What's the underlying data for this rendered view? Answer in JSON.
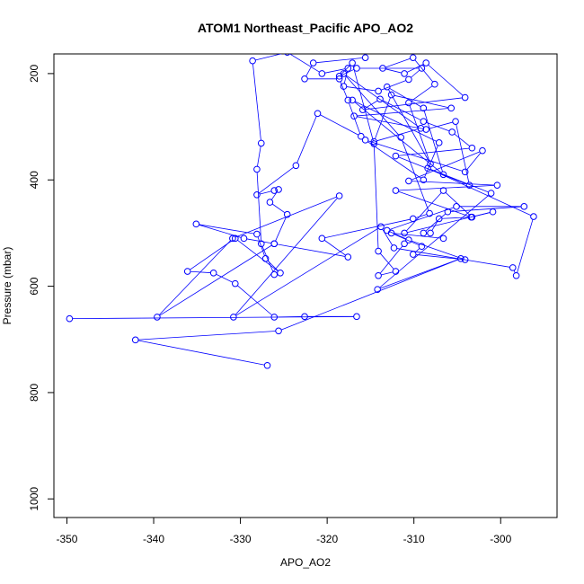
{
  "chart_data": {
    "type": "line",
    "title": "ATOM1 Northeast_Pacific APO_AO2",
    "xlabel": "APO_AO2",
    "ylabel": "Pressure (mbar)",
    "xlim": [
      -351.5,
      -293.5
    ],
    "ylim": [
      1035,
      163
    ],
    "y_reversed": true,
    "grid": false,
    "legend": "none",
    "color": "#0000ff",
    "x_ticks": [
      -350,
      -340,
      -330,
      -320,
      -310,
      -300
    ],
    "x_tick_labels": [
      "-350",
      "-340",
      "-330",
      "-320",
      "-310",
      "-300"
    ],
    "y_ticks": [
      200,
      400,
      600,
      800,
      1000
    ],
    "y_tick_labels": [
      "200",
      "400",
      "600",
      "800",
      "1000"
    ],
    "series": [
      {
        "x": [
          -326.9,
          -342.1,
          -325.6,
          -304.6,
          -314.2,
          -301.1,
          -308.4,
          -296.2,
          -298.2,
          -298.6,
          -312.3,
          -313.8,
          -330.8,
          -318.6,
          -330.9,
          -339.6,
          -326.1,
          -317.6,
          -320.6,
          -310.1,
          -308.2,
          -311.5,
          -318.1,
          -309.2,
          -314.6,
          -312.6,
          -305.7,
          -316.9,
          -308.6,
          -305.2,
          -303.6,
          -312.1,
          -303.3,
          -305.6,
          -308.9,
          -313.9,
          -315.9,
          -304.1,
          -308.6,
          -311.1,
          -313.6,
          -310.1,
          -307.6,
          -310.6,
          -308.1,
          -313.1,
          -308.9,
          -306.6,
          -317.1,
          -307.1,
          -308.9,
          -315.6,
          -304.1,
          -302.1,
          -310.6,
          -300.4,
          -312.1,
          -303.4,
          -300.9,
          -311.1,
          -306.6,
          -303.3,
          -307.1,
          -308.1,
          -308.9,
          -306.1,
          -297.3,
          -305.1,
          -313.1,
          -310.6,
          -304.1,
          -310.1,
          -309.1,
          -312.6,
          -306.6
        ],
        "y": [
          749,
          701,
          684,
          548,
          606,
          425,
          378,
          469,
          580,
          565,
          528,
          488,
          658,
          430,
          510,
          658,
          520,
          545,
          510,
          473,
          463,
          320,
          200,
          303,
          328,
          240,
          265,
          280,
          305,
          290,
          410,
          355,
          340,
          310,
          290,
          248,
          268,
          245,
          180,
          200,
          190,
          170,
          220,
          255,
          370,
          225,
          265,
          390,
          250,
          330,
          400,
          325,
          385,
          345,
          402,
          410,
          420,
          470,
          460,
          500,
          420,
          470,
          473,
          500,
          500,
          460,
          450,
          450,
          495,
          513,
          550,
          540,
          525,
          500,
          510
        ]
      },
      {
        "x": [
          -349.7,
          -316.6,
          -322.6,
          -326.1,
          -330.6,
          -333.1,
          -336.1,
          -330.6,
          -325.4,
          -327.1,
          -328.1,
          -335.1,
          -329.6,
          -326.1,
          -324.6,
          -326.6,
          -325.6,
          -326.1,
          -328.1,
          -323.6,
          -321.1,
          -316.1,
          -317.6,
          -318.6,
          -322.6,
          -321.6,
          -315.6
        ],
        "y": [
          661,
          657,
          657,
          658,
          595,
          575,
          572,
          510,
          575,
          548,
          502,
          483,
          510,
          520,
          465,
          442,
          418,
          420,
          428,
          373,
          275,
          318,
          250,
          210,
          210,
          180,
          170
        ]
      },
      {
        "x": [
          -326.1,
          -327.6,
          -328.1,
          -327.6,
          -328.6,
          -324.6,
          -320.6,
          -317.6,
          -318.1,
          -314.1,
          -310.6,
          -309.1,
          -316.6,
          -318.6,
          -317.1,
          -314.6,
          -314.1,
          -312.1,
          -314.1,
          -311.1
        ],
        "y": [
          578,
          520,
          380,
          331,
          176,
          160,
          200,
          190,
          224,
          233,
          211,
          190,
          190,
          205,
          180,
          332,
          534,
          572,
          580,
          520
        ]
      }
    ]
  }
}
